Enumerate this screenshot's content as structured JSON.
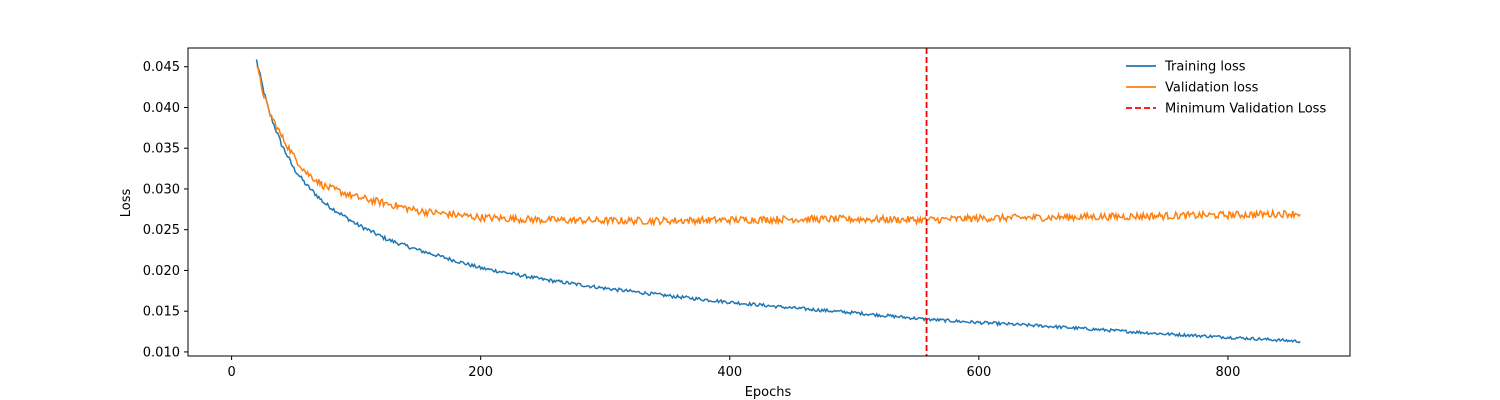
{
  "chart_data": {
    "type": "line",
    "xlabel": "Epochs",
    "ylabel": "Loss",
    "xlim": [
      -35,
      898
    ],
    "ylim": [
      0.0095,
      0.0473
    ],
    "x_ticks": [
      0,
      200,
      400,
      600,
      800
    ],
    "y_ticks": [
      0.01,
      0.015,
      0.02,
      0.025,
      0.03,
      0.035,
      0.04,
      0.045
    ],
    "x_tick_labels": [
      "0",
      "200",
      "400",
      "600",
      "800"
    ],
    "y_tick_labels": [
      "0.010",
      "0.015",
      "0.020",
      "0.025",
      "0.030",
      "0.035",
      "0.040",
      "0.045"
    ],
    "x_start": 20,
    "x_end": 858,
    "sample_epochs": [
      20,
      25,
      30,
      40,
      50,
      60,
      75,
      100,
      125,
      150,
      200,
      250,
      300,
      350,
      400,
      450,
      500,
      558,
      600,
      650,
      700,
      750,
      800,
      858
    ],
    "series": [
      {
        "name": "Training loss",
        "color": "#1f77b4",
        "values": [
          0.0458,
          0.0425,
          0.0395,
          0.0355,
          0.0325,
          0.0305,
          0.0282,
          0.0257,
          0.0238,
          0.0225,
          0.0203,
          0.0189,
          0.0178,
          0.0169,
          0.0161,
          0.0154,
          0.0148,
          0.014,
          0.0136,
          0.0132,
          0.0127,
          0.0122,
          0.0118,
          0.0113
        ]
      },
      {
        "name": "Validation loss",
        "color": "#ff7f0e",
        "values": [
          0.0452,
          0.042,
          0.0395,
          0.0365,
          0.034,
          0.032,
          0.0303,
          0.029,
          0.0282,
          0.0273,
          0.0265,
          0.0262,
          0.0261,
          0.0261,
          0.0262,
          0.0263,
          0.0263,
          0.0262,
          0.0264,
          0.0265,
          0.0266,
          0.0267,
          0.0268,
          0.027
        ]
      }
    ],
    "vline": {
      "name": "Minimum Validation Loss",
      "x": 558,
      "color": "#ff0000",
      "style": "dashed"
    },
    "legend": {
      "position": "top-right",
      "entries": [
        "Training loss",
        "Validation loss",
        "Minimum Validation Loss"
      ]
    },
    "grid": false
  }
}
